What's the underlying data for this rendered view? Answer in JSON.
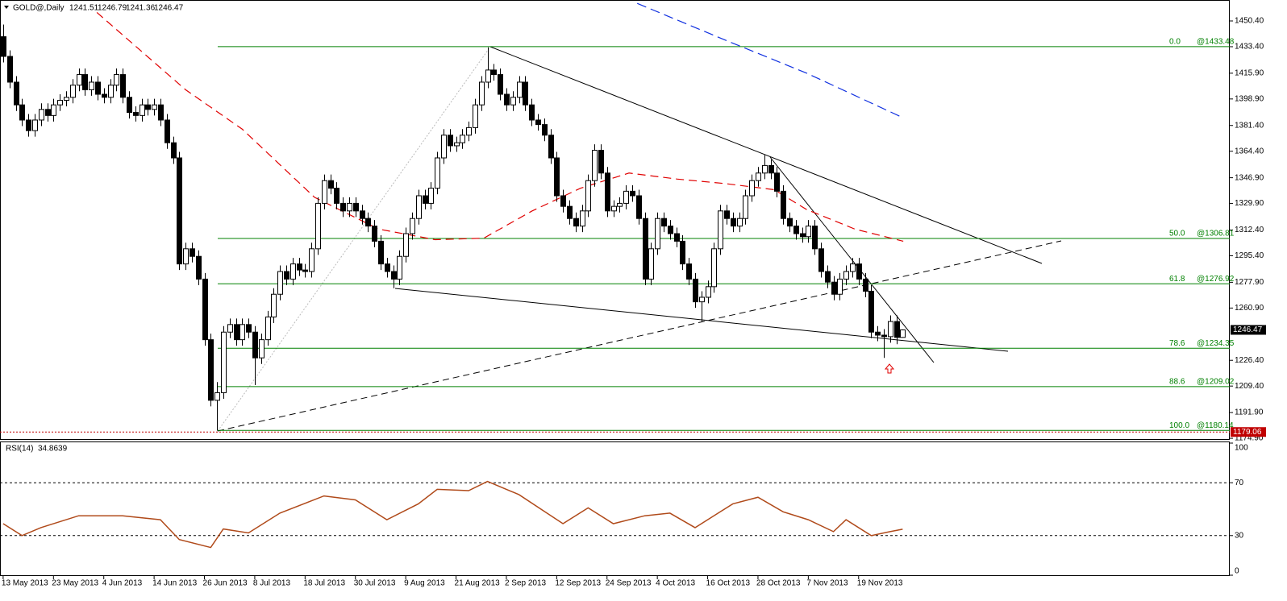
{
  "chart_data": [
    {
      "type": "candlestick",
      "title": "GOLD@,Daily",
      "ohlc_header": [
        1241.51,
        1246.79,
        1241.36,
        1246.47
      ],
      "xlim": [
        -0.5,
        195
      ],
      "ylim": [
        1174.4,
        1462.1
      ],
      "yticks": [
        {
          "value": 1450.4,
          "label": "1450.40"
        },
        {
          "value": 1433.4,
          "label": "1433.40"
        },
        {
          "value": 1415.9,
          "label": "1415.90"
        },
        {
          "value": 1398.9,
          "label": "1398.90"
        },
        {
          "value": 1381.4,
          "label": "1381.40"
        },
        {
          "value": 1364.4,
          "label": "1364.40"
        },
        {
          "value": 1346.9,
          "label": "1346.90"
        },
        {
          "value": 1329.9,
          "label": "1329.90"
        },
        {
          "value": 1312.4,
          "label": "1312.40"
        },
        {
          "value": 1295.4,
          "label": "1295.40"
        },
        {
          "value": 1277.9,
          "label": "1277.90"
        },
        {
          "value": 1260.9,
          "label": "1260.90"
        },
        {
          "value": 1226.4,
          "label": "1226.40"
        },
        {
          "value": 1209.4,
          "label": "1209.40"
        },
        {
          "value": 1191.9,
          "label": "1191.90"
        },
        {
          "value": 1174.9,
          "label": "1174.90"
        }
      ],
      "up_color": "#ffffff",
      "down_color": "#000000",
      "candles": [
        [
          1440,
          1448,
          1423,
          1427
        ],
        [
          1427,
          1431,
          1406,
          1410
        ],
        [
          1410,
          1414,
          1391,
          1395
        ],
        [
          1395,
          1399,
          1381,
          1385
        ],
        [
          1385,
          1389,
          1374,
          1378
        ],
        [
          1378,
          1389,
          1374,
          1385
        ],
        [
          1385,
          1396,
          1381,
          1392
        ],
        [
          1392,
          1396,
          1384,
          1388
        ],
        [
          1388,
          1399,
          1384,
          1395
        ],
        [
          1395,
          1402,
          1391,
          1398
        ],
        [
          1398,
          1404,
          1394,
          1400
        ],
        [
          1400,
          1412,
          1396,
          1408
        ],
        [
          1408,
          1419,
          1404,
          1415
        ],
        [
          1415,
          1419,
          1401,
          1405
        ],
        [
          1405,
          1414,
          1401,
          1410
        ],
        [
          1410,
          1414,
          1398,
          1402
        ],
        [
          1402,
          1406,
          1396,
          1400
        ],
        [
          1400,
          1412,
          1396,
          1408
        ],
        [
          1408,
          1419,
          1404,
          1415
        ],
        [
          1415,
          1419,
          1396,
          1400
        ],
        [
          1400,
          1404,
          1386,
          1390
        ],
        [
          1390,
          1394,
          1384,
          1388
        ],
        [
          1388,
          1399,
          1384,
          1395
        ],
        [
          1395,
          1399,
          1388,
          1392
        ],
        [
          1392,
          1399,
          1388,
          1395
        ],
        [
          1395,
          1399,
          1381,
          1385
        ],
        [
          1385,
          1389,
          1366,
          1370
        ],
        [
          1370,
          1374,
          1356,
          1360
        ],
        [
          1360,
          1364,
          1286,
          1290
        ],
        [
          1290,
          1304,
          1286,
          1300
        ],
        [
          1300,
          1304,
          1291,
          1295
        ],
        [
          1295,
          1299,
          1276,
          1280
        ],
        [
          1280,
          1284,
          1236,
          1240
        ],
        [
          1240,
          1244,
          1196,
          1200
        ],
        [
          1200,
          1212,
          1180,
          1205
        ],
        [
          1205,
          1249,
          1201,
          1245
        ],
        [
          1245,
          1254,
          1241,
          1250
        ],
        [
          1250,
          1254,
          1236,
          1240
        ],
        [
          1240,
          1254,
          1236,
          1250
        ],
        [
          1250,
          1254,
          1241,
          1245
        ],
        [
          1245,
          1249,
          1210,
          1228
        ],
        [
          1228,
          1244,
          1224,
          1240
        ],
        [
          1240,
          1259,
          1236,
          1255
        ],
        [
          1255,
          1274,
          1251,
          1270
        ],
        [
          1270,
          1289,
          1266,
          1285
        ],
        [
          1285,
          1289,
          1276,
          1280
        ],
        [
          1280,
          1294,
          1276,
          1290
        ],
        [
          1290,
          1294,
          1282,
          1286
        ],
        [
          1286,
          1290,
          1281,
          1285
        ],
        [
          1285,
          1304,
          1281,
          1300
        ],
        [
          1300,
          1334,
          1296,
          1330
        ],
        [
          1330,
          1349,
          1326,
          1345
        ],
        [
          1345,
          1349,
          1336,
          1340
        ],
        [
          1340,
          1344,
          1326,
          1330
        ],
        [
          1330,
          1334,
          1321,
          1325
        ],
        [
          1325,
          1334,
          1321,
          1330
        ],
        [
          1330,
          1334,
          1321,
          1325
        ],
        [
          1325,
          1329,
          1316,
          1320
        ],
        [
          1320,
          1324,
          1311,
          1315
        ],
        [
          1315,
          1319,
          1301,
          1305
        ],
        [
          1305,
          1309,
          1286,
          1290
        ],
        [
          1290,
          1294,
          1281,
          1285
        ],
        [
          1285,
          1289,
          1274,
          1280
        ],
        [
          1280,
          1299,
          1276,
          1295
        ],
        [
          1295,
          1314,
          1291,
          1310
        ],
        [
          1310,
          1324,
          1306,
          1320
        ],
        [
          1320,
          1339,
          1316,
          1335
        ],
        [
          1335,
          1339,
          1326,
          1330
        ],
        [
          1330,
          1344,
          1326,
          1340
        ],
        [
          1340,
          1364,
          1336,
          1360
        ],
        [
          1360,
          1379,
          1356,
          1375
        ],
        [
          1375,
          1379,
          1364,
          1368
        ],
        [
          1368,
          1374,
          1364,
          1370
        ],
        [
          1370,
          1379,
          1366,
          1375
        ],
        [
          1375,
          1384,
          1371,
          1380
        ],
        [
          1380,
          1399,
          1376,
          1395
        ],
        [
          1395,
          1414,
          1391,
          1410
        ],
        [
          1410,
          1433,
          1406,
          1418
        ],
        [
          1418,
          1422,
          1411,
          1415
        ],
        [
          1415,
          1419,
          1398,
          1402
        ],
        [
          1402,
          1406,
          1391,
          1395
        ],
        [
          1395,
          1404,
          1391,
          1400
        ],
        [
          1400,
          1414,
          1396,
          1410
        ],
        [
          1410,
          1414,
          1391,
          1395
        ],
        [
          1395,
          1399,
          1381,
          1385
        ],
        [
          1385,
          1389,
          1378,
          1382
        ],
        [
          1382,
          1386,
          1371,
          1375
        ],
        [
          1375,
          1379,
          1356,
          1360
        ],
        [
          1360,
          1364,
          1331,
          1335
        ],
        [
          1335,
          1339,
          1324,
          1328
        ],
        [
          1328,
          1332,
          1316,
          1320
        ],
        [
          1320,
          1324,
          1311,
          1315
        ],
        [
          1315,
          1329,
          1311,
          1325
        ],
        [
          1325,
          1349,
          1321,
          1345
        ],
        [
          1345,
          1369,
          1341,
          1365
        ],
        [
          1365,
          1369,
          1346,
          1350
        ],
        [
          1350,
          1354,
          1321,
          1325
        ],
        [
          1325,
          1332,
          1321,
          1328
        ],
        [
          1328,
          1334,
          1324,
          1330
        ],
        [
          1330,
          1342,
          1326,
          1338
        ],
        [
          1338,
          1342,
          1331,
          1335
        ],
        [
          1335,
          1339,
          1316,
          1320
        ],
        [
          1320,
          1324,
          1276,
          1280
        ],
        [
          1280,
          1304,
          1276,
          1300
        ],
        [
          1300,
          1324,
          1296,
          1320
        ],
        [
          1320,
          1324,
          1311,
          1315
        ],
        [
          1315,
          1319,
          1306,
          1310
        ],
        [
          1310,
          1314,
          1301,
          1305
        ],
        [
          1305,
          1309,
          1286,
          1290
        ],
        [
          1290,
          1294,
          1276,
          1280
        ],
        [
          1280,
          1284,
          1261,
          1265
        ],
        [
          1265,
          1272,
          1252,
          1268
        ],
        [
          1268,
          1279,
          1264,
          1275
        ],
        [
          1275,
          1304,
          1271,
          1300
        ],
        [
          1300,
          1329,
          1296,
          1325
        ],
        [
          1325,
          1329,
          1316,
          1320
        ],
        [
          1320,
          1324,
          1311,
          1315
        ],
        [
          1315,
          1324,
          1311,
          1320
        ],
        [
          1320,
          1339,
          1316,
          1335
        ],
        [
          1335,
          1349,
          1331,
          1345
        ],
        [
          1345,
          1354,
          1341,
          1350
        ],
        [
          1350,
          1362,
          1346,
          1355
        ],
        [
          1355,
          1359,
          1346,
          1350
        ],
        [
          1350,
          1354,
          1334,
          1338
        ],
        [
          1338,
          1342,
          1316,
          1320
        ],
        [
          1320,
          1324,
          1311,
          1315
        ],
        [
          1315,
          1319,
          1306,
          1310
        ],
        [
          1310,
          1314,
          1304,
          1308
        ],
        [
          1308,
          1319,
          1304,
          1315
        ],
        [
          1315,
          1319,
          1296,
          1300
        ],
        [
          1300,
          1304,
          1281,
          1285
        ],
        [
          1285,
          1289,
          1274,
          1278
        ],
        [
          1278,
          1282,
          1266,
          1270
        ],
        [
          1270,
          1284,
          1266,
          1280
        ],
        [
          1280,
          1289,
          1276,
          1285
        ],
        [
          1285,
          1294,
          1281,
          1290
        ],
        [
          1290,
          1294,
          1276,
          1280
        ],
        [
          1280,
          1284,
          1268,
          1272
        ],
        [
          1272,
          1276,
          1241,
          1245
        ],
        [
          1245,
          1249,
          1239,
          1243
        ],
        [
          1243,
          1247,
          1228,
          1242
        ],
        [
          1242,
          1256,
          1238,
          1252
        ],
        [
          1252,
          1256,
          1237,
          1241.5
        ],
        [
          1241.51,
          1246.79,
          1241.36,
          1246.47
        ]
      ],
      "series": [
        {
          "color": "#e00000",
          "dash": "10,6",
          "x": [
            14.9,
            29,
            38,
            49.5,
            59.7,
            68.7,
            76.4,
            84.1,
            91.8,
            99.5,
            107.2,
            114.9,
            122.6,
            127.7,
            135.4,
            143.1
          ],
          "values": [
            1456,
            1405,
            1379,
            1334,
            1313,
            1306,
            1307,
            1325,
            1340,
            1350,
            1346,
            1343,
            1339,
            1326,
            1313,
            1305
          ]
        },
        {
          "color": "#1030e0",
          "dash": "12,6",
          "x": [
            100.8,
            114.9,
            127.7,
            142.8
          ],
          "values": [
            1462,
            1437.6,
            1416,
            1387
          ]
        }
      ],
      "fibonacci_color": "#008000",
      "fibonacci": [
        {
          "level": "0.0",
          "value": 1433.48,
          "label": "@1433.48"
        },
        {
          "level": "50.0",
          "value": 1306.81,
          "label": "@1306.81"
        },
        {
          "level": "61.8",
          "value": 1276.92,
          "label": "@1276.92"
        },
        {
          "level": "78.6",
          "value": 1234.35,
          "label": "@1234.35"
        },
        {
          "level": "88.6",
          "value": 1209.02,
          "label": "@1209.02"
        },
        {
          "level": "100.0",
          "value": 1180.14,
          "label": "@1180.14"
        }
      ],
      "last_price": 1246.47,
      "marker_price": 1179.06
    },
    {
      "type": "line",
      "title": "RSI(14)",
      "last_value": 34.8639,
      "color": "#b04a1a",
      "xlim": [
        -0.5,
        195
      ],
      "ylim": [
        0,
        100
      ],
      "yticks": [
        0,
        30,
        70,
        100
      ],
      "levels": [
        30,
        70
      ],
      "x": [
        0,
        3,
        6,
        12,
        19,
        25,
        28,
        33,
        35,
        39,
        44,
        51,
        56,
        61,
        66,
        69,
        74,
        77,
        82,
        89,
        93,
        97,
        102,
        106,
        110,
        114,
        116,
        120,
        124,
        128,
        132,
        134,
        138,
        141,
        143
      ],
      "values": [
        39,
        30,
        36,
        45,
        45,
        42,
        27,
        21,
        35,
        32,
        47,
        60,
        57,
        42,
        54,
        65,
        64,
        71,
        61,
        39,
        51,
        39,
        45,
        47,
        36,
        48,
        54,
        59,
        48,
        42,
        33,
        42,
        30,
        33,
        34.86
      ],
      "xticks": [
        {
          "value": 0,
          "label": "13 May 2013"
        },
        {
          "value": 8,
          "label": "23 May 2013"
        },
        {
          "value": 16,
          "label": "4 Jun 2013"
        },
        {
          "value": 24,
          "label": "14 Jun 2013"
        },
        {
          "value": 32,
          "label": "26 Jun 2013"
        },
        {
          "value": 40,
          "label": "8 Jul 2013"
        },
        {
          "value": 48,
          "label": "18 Jul 2013"
        },
        {
          "value": 56,
          "label": "30 Jul 2013"
        },
        {
          "value": 64,
          "label": "9 Aug 2013"
        },
        {
          "value": 72,
          "label": "21 Aug 2013"
        },
        {
          "value": 80,
          "label": "2 Sep 2013"
        },
        {
          "value": 88,
          "label": "12 Sep 2013"
        },
        {
          "value": 96,
          "label": "24 Sep 2013"
        },
        {
          "value": 104,
          "label": "4 Oct 2013"
        },
        {
          "value": 112,
          "label": "16 Oct 2013"
        },
        {
          "value": 120,
          "label": "28 Oct 2013"
        },
        {
          "value": 128,
          "label": "7 Nov 2013"
        },
        {
          "value": 136,
          "label": "19 Nov 2013"
        }
      ]
    }
  ]
}
